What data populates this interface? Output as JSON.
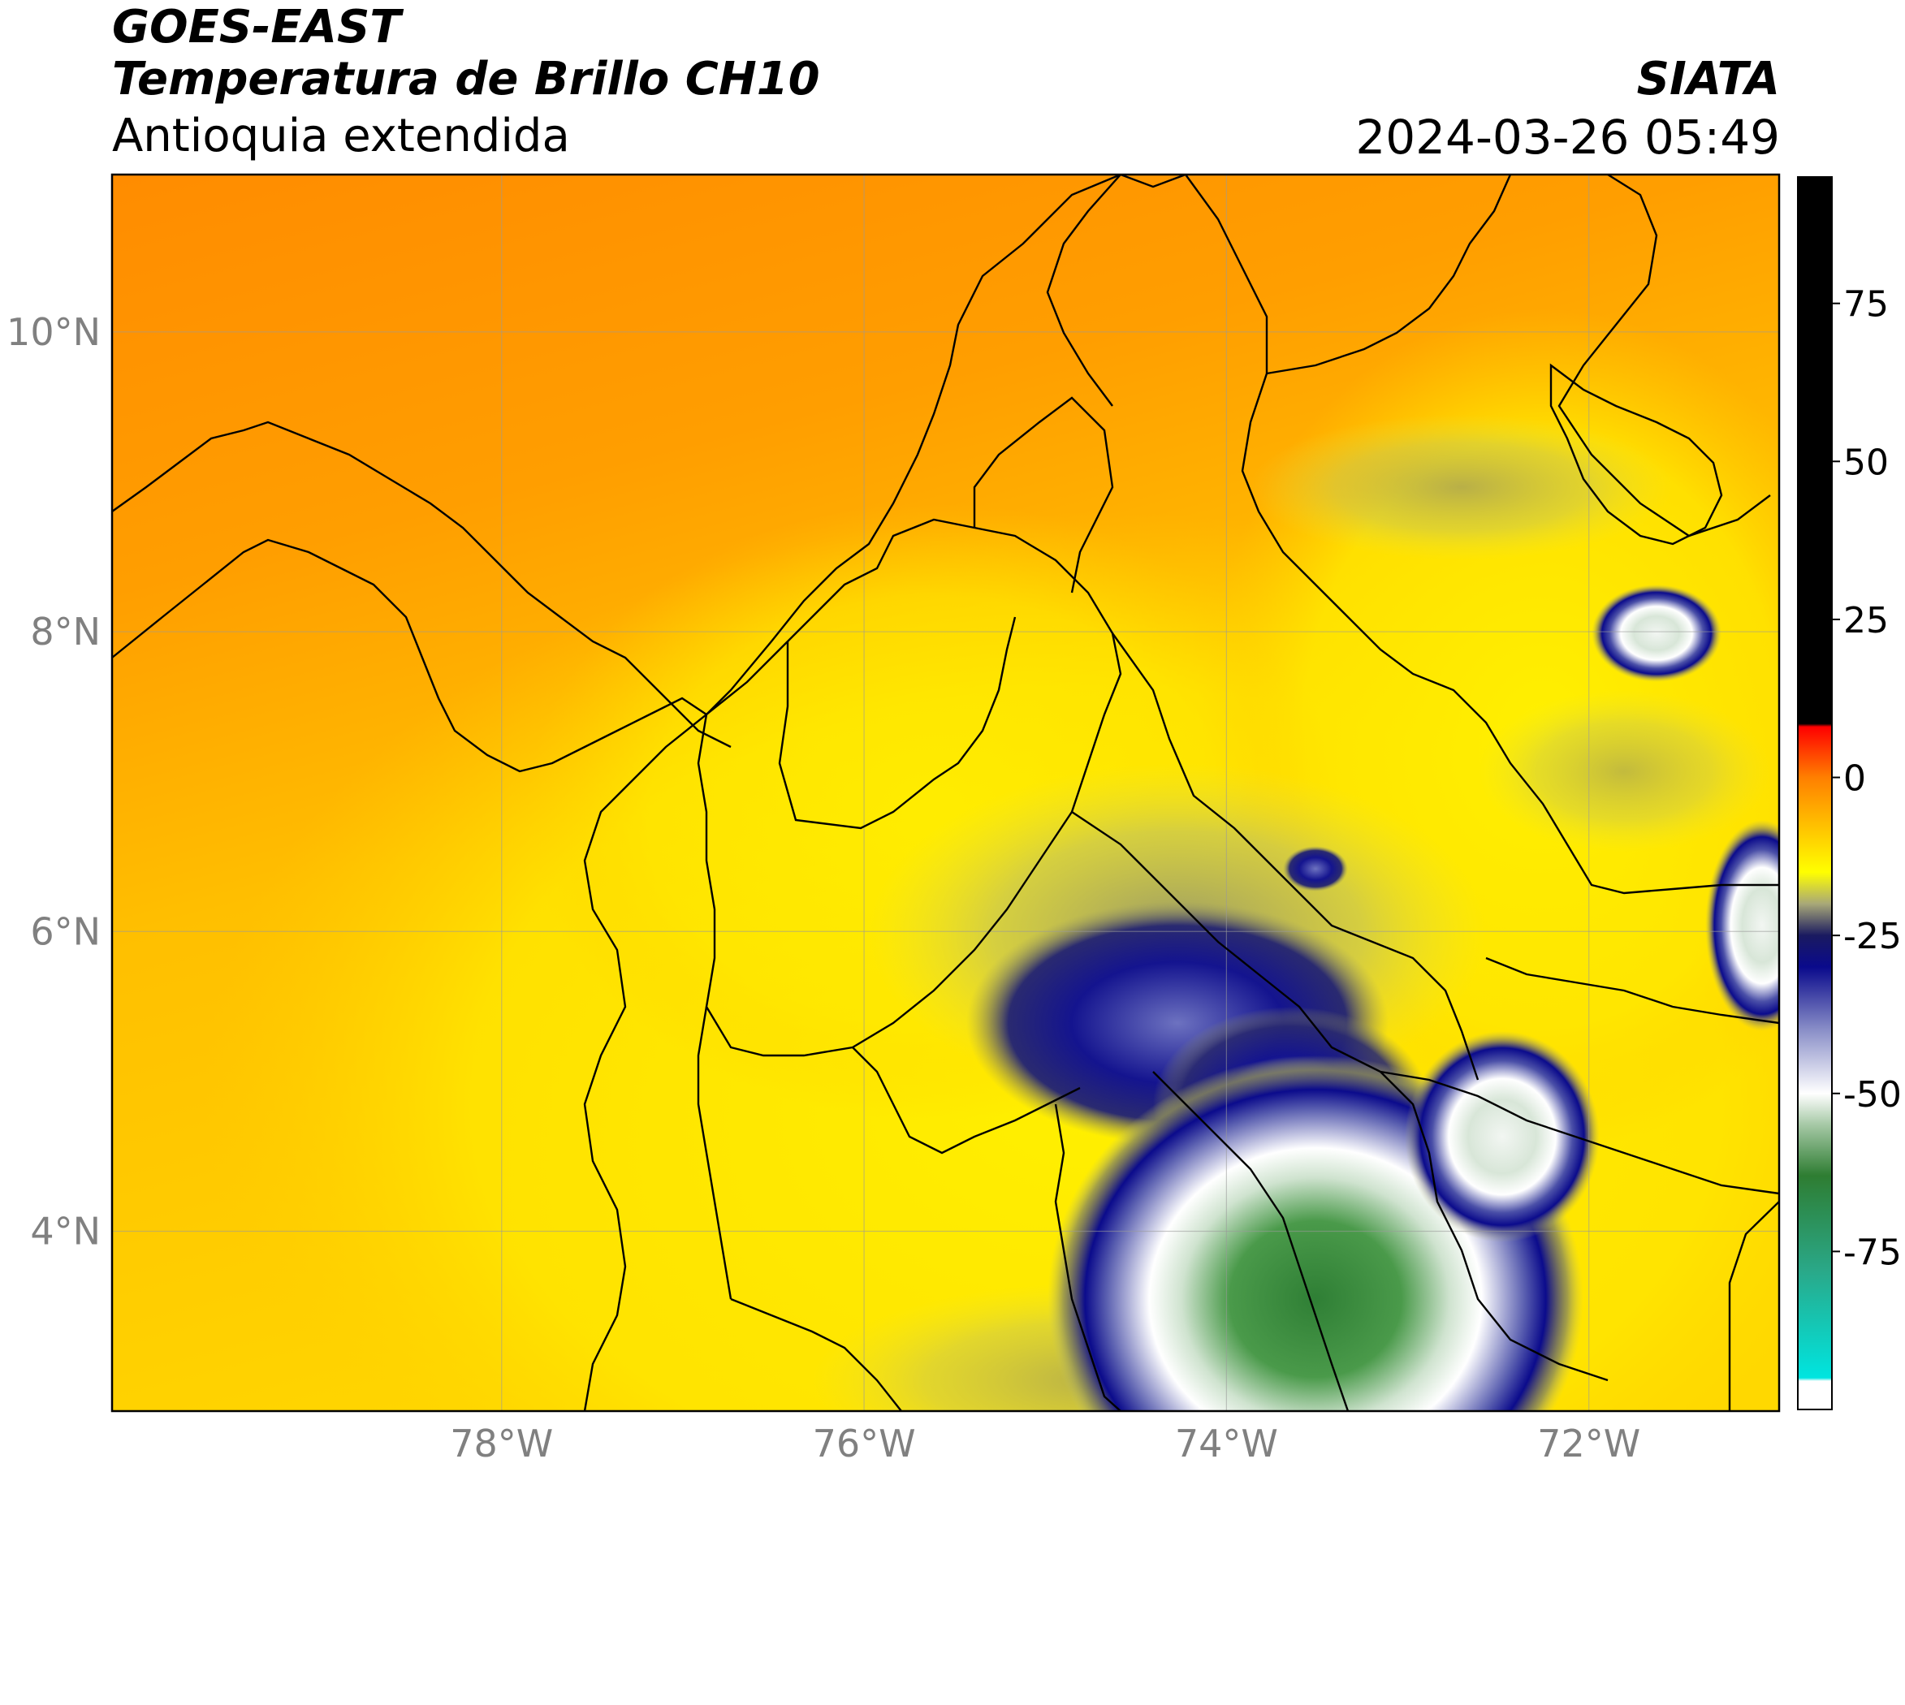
{
  "header": {
    "satellite": "GOES-EAST",
    "product": "Temperatura de Brillo CH10",
    "region": "Antioquia extendida",
    "agency": "SIATA",
    "datetime": "2024-03-26 05:49"
  },
  "map": {
    "lon_range": [
      -80.15,
      -70.95
    ],
    "lat_range": [
      2.8,
      11.05
    ],
    "lon_ticks": [
      {
        "value": -78,
        "label": "78°W"
      },
      {
        "value": -76,
        "label": "76°W"
      },
      {
        "value": -74,
        "label": "74°W"
      },
      {
        "value": -72,
        "label": "72°W"
      }
    ],
    "lat_ticks": [
      {
        "value": 10,
        "label": "10°N"
      },
      {
        "value": 8,
        "label": "8°N"
      },
      {
        "value": 6,
        "label": "6°N"
      },
      {
        "value": 4,
        "label": "4°N"
      }
    ],
    "gridlines": true
  },
  "colorbar": {
    "range": [
      -100,
      95
    ],
    "ticks": [
      {
        "value": 75,
        "label": "75"
      },
      {
        "value": 50,
        "label": "50"
      },
      {
        "value": 25,
        "label": "25"
      },
      {
        "value": 0,
        "label": "0"
      },
      {
        "value": -25,
        "label": "-25"
      },
      {
        "value": -50,
        "label": "-50"
      },
      {
        "value": -75,
        "label": "-75"
      }
    ],
    "stops": [
      {
        "value": -100,
        "color": "#ffffff"
      },
      {
        "value": -95.5,
        "color": "#ffffff"
      },
      {
        "value": -95,
        "color": "#00e5e0"
      },
      {
        "value": -78,
        "color": "#2aa888"
      },
      {
        "value": -63,
        "color": "#2e7d32"
      },
      {
        "value": -55,
        "color": "#a5c8a5"
      },
      {
        "value": -50,
        "color": "#ffffff"
      },
      {
        "value": -40,
        "color": "#8a8fc8"
      },
      {
        "value": -30,
        "color": "#0a0a8c"
      },
      {
        "value": -25,
        "color": "#1a1a60"
      },
      {
        "value": -20,
        "color": "#a8a878"
      },
      {
        "value": -15,
        "color": "#ffff00"
      },
      {
        "value": -5,
        "color": "#ffaa00"
      },
      {
        "value": 0,
        "color": "#ff7f00"
      },
      {
        "value": 8,
        "color": "#ff0000"
      },
      {
        "value": 8.5,
        "color": "#000000"
      },
      {
        "value": 95,
        "color": "#000000"
      }
    ]
  },
  "colors": {
    "warm_background": "#ff9800",
    "mid_background": "#ffc800",
    "land_background": "#ffe100",
    "cold_cloud": "#0b0b8c",
    "very_cold_cloud": "#ffffff",
    "coldest_cloud": "#3e8e41",
    "boundaries": "#000000",
    "grid": "#9a9a9a"
  }
}
